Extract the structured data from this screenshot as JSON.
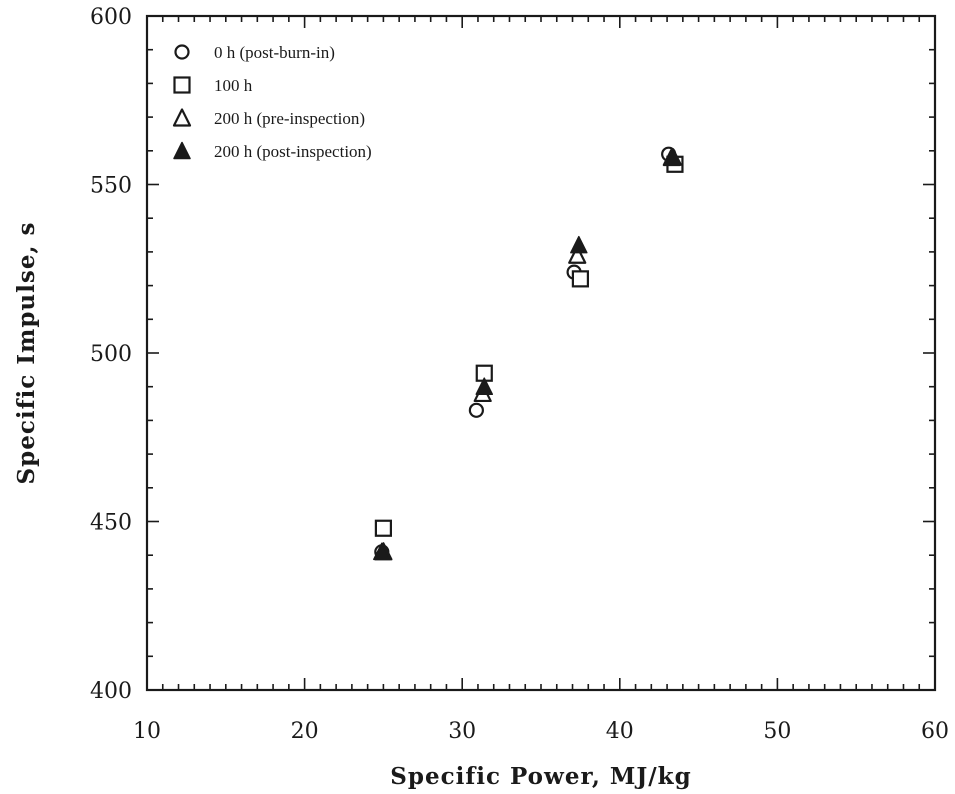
{
  "chart_data": {
    "type": "scatter",
    "xlabel": "Specific Power, MJ/kg",
    "ylabel": "Specific Impulse, s",
    "xlim": [
      10,
      60
    ],
    "ylim": [
      400,
      600
    ],
    "x_ticks": [
      "10",
      "20",
      "30",
      "40",
      "50",
      "60"
    ],
    "y_ticks": [
      "400",
      "450",
      "500",
      "550",
      "600"
    ],
    "legend_position": "top-left",
    "grid": false,
    "series": [
      {
        "name": "0 h (post-burn-in)",
        "marker": "circle-open",
        "points": [
          [
            24.9,
            441
          ],
          [
            30.9,
            483
          ],
          [
            37.1,
            524
          ],
          [
            43.1,
            559
          ]
        ]
      },
      {
        "name": "100 h",
        "marker": "square-open",
        "points": [
          [
            25.0,
            448
          ],
          [
            31.4,
            494
          ],
          [
            37.5,
            522
          ],
          [
            43.5,
            556
          ]
        ]
      },
      {
        "name": "200 h (pre-inspection)",
        "marker": "triangle-open",
        "points": [
          [
            25.0,
            441
          ],
          [
            31.3,
            488
          ],
          [
            37.3,
            529
          ],
          [
            43.3,
            558
          ]
        ]
      },
      {
        "name": "200 h (post-inspection)",
        "marker": "triangle-filled",
        "points": [
          [
            24.9,
            441
          ],
          [
            31.4,
            490
          ],
          [
            37.4,
            532
          ],
          [
            43.4,
            558
          ]
        ]
      }
    ],
    "colors": {
      "ink": "#1a1a1a",
      "background": "#ffffff"
    }
  }
}
